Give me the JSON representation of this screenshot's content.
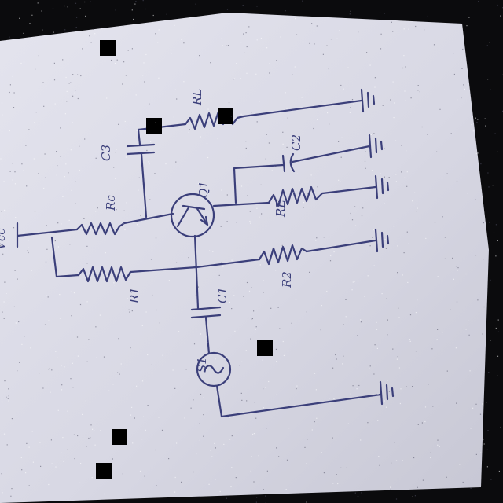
{
  "diagram": {
    "kind": "hand-drawn transistor amplifier schematic",
    "colors": {
      "background": "#0b0b0d",
      "paper": "#d9d9e5",
      "ink": "#3b3f7a",
      "marks": "#000000"
    },
    "labels": {
      "supply": "Vcc",
      "r_collector": "Rc",
      "r_bias_1": "R1",
      "r_bias_2": "R2",
      "r_emitter": "RE",
      "r_load": "RL",
      "c_input": "C1",
      "c_output": "C3",
      "c_emitter": "C2",
      "transistor": "Q1",
      "source": "S1"
    },
    "icons": [
      "ground-icon",
      "resistor-icon",
      "capacitor-icon",
      "transistor-icon",
      "ac-source-icon"
    ]
  }
}
